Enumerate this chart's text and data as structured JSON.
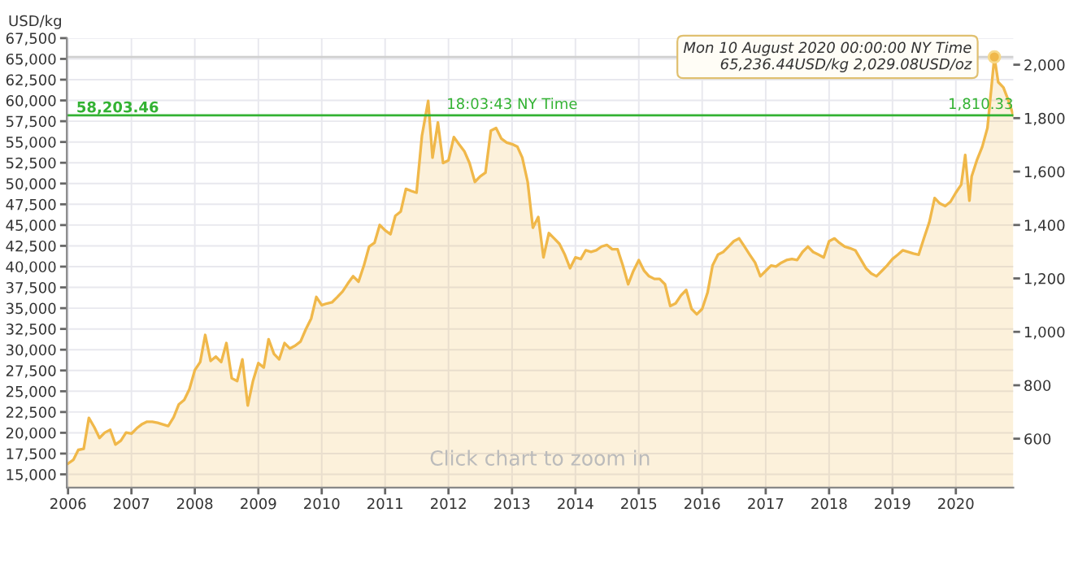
{
  "chart_data": {
    "type": "area",
    "ylabel": "USD/kg",
    "x": [
      "2006-01",
      "2006-02",
      "2006-03",
      "2006-04",
      "2006-05",
      "2006-06",
      "2006-07",
      "2006-08",
      "2006-09",
      "2006-10",
      "2006-11",
      "2006-12",
      "2007-01",
      "2007-02",
      "2007-03",
      "2007-04",
      "2007-05",
      "2007-06",
      "2007-07",
      "2007-08",
      "2007-09",
      "2007-10",
      "2007-11",
      "2007-12",
      "2008-01",
      "2008-02",
      "2008-03",
      "2008-04",
      "2008-05",
      "2008-06",
      "2008-07",
      "2008-08",
      "2008-09",
      "2008-10",
      "2008-11",
      "2008-12",
      "2009-01",
      "2009-02",
      "2009-03",
      "2009-04",
      "2009-05",
      "2009-06",
      "2009-07",
      "2009-08",
      "2009-09",
      "2009-10",
      "2009-11",
      "2009-12",
      "2010-01",
      "2010-02",
      "2010-03",
      "2010-04",
      "2010-05",
      "2010-06",
      "2010-07",
      "2010-08",
      "2010-09",
      "2010-10",
      "2010-11",
      "2010-12",
      "2011-01",
      "2011-02",
      "2011-03",
      "2011-04",
      "2011-05",
      "2011-06",
      "2011-07",
      "2011-08",
      "2011-09-06",
      "2011-10",
      "2011-11",
      "2011-12",
      "2012-01",
      "2012-02",
      "2012-03",
      "2012-04",
      "2012-05",
      "2012-06",
      "2012-07",
      "2012-08",
      "2012-09",
      "2012-10",
      "2012-11",
      "2012-12",
      "2013-01",
      "2013-02",
      "2013-03",
      "2013-04",
      "2013-05",
      "2013-06",
      "2013-07",
      "2013-08",
      "2013-09",
      "2013-10",
      "2013-11",
      "2013-12",
      "2014-01",
      "2014-02",
      "2014-03",
      "2014-04",
      "2014-05",
      "2014-06",
      "2014-07",
      "2014-08",
      "2014-09",
      "2014-10",
      "2014-11",
      "2014-12",
      "2015-01",
      "2015-02",
      "2015-03",
      "2015-04",
      "2015-05",
      "2015-06",
      "2015-07",
      "2015-08",
      "2015-09",
      "2015-10",
      "2015-11",
      "2015-12",
      "2016-01",
      "2016-02",
      "2016-03",
      "2016-04",
      "2016-05",
      "2016-06",
      "2016-07",
      "2016-08",
      "2016-09",
      "2016-10",
      "2016-11",
      "2016-12",
      "2017-01",
      "2017-02",
      "2017-03",
      "2017-04",
      "2017-05",
      "2017-06",
      "2017-07",
      "2017-08",
      "2017-09",
      "2017-10",
      "2017-11",
      "2017-12",
      "2018-01",
      "2018-02",
      "2018-03",
      "2018-04",
      "2018-05",
      "2018-06",
      "2018-07",
      "2018-08",
      "2018-09",
      "2018-10",
      "2018-11",
      "2018-12",
      "2019-01",
      "2019-02",
      "2019-03",
      "2019-04",
      "2019-05",
      "2019-06",
      "2019-07",
      "2019-08",
      "2019-09",
      "2019-10",
      "2019-11",
      "2019-12",
      "2020-01",
      "2020-02",
      "2020-02-24",
      "2020-03-19",
      "2020-04",
      "2020-05",
      "2020-06",
      "2020-07",
      "2020-08-10",
      "2020-09",
      "2020-10",
      "2020-11",
      "2020-11-27"
    ],
    "series": [
      {
        "color": "#f0b84a",
        "values": [
          16300,
          16760,
          17940,
          18070,
          21790,
          20680,
          19380,
          20030,
          20350,
          18590,
          19050,
          20030,
          19900,
          20550,
          21010,
          21330,
          21330,
          21200,
          21010,
          20810,
          21860,
          23420,
          23950,
          25250,
          27540,
          28520,
          31780,
          28650,
          29170,
          28520,
          30800,
          26560,
          26230,
          28840,
          23290,
          26230,
          28390,
          27860,
          31260,
          29500,
          28840,
          30800,
          30150,
          30480,
          30990,
          32440,
          33740,
          36350,
          35370,
          35570,
          35700,
          36350,
          37010,
          37990,
          38840,
          38190,
          40140,
          42410,
          42870,
          45010,
          44360,
          43900,
          46110,
          46630,
          49360,
          49100,
          48900,
          55720,
          59940,
          53120,
          57340,
          52470,
          52800,
          55590,
          54740,
          53900,
          52470,
          50200,
          50850,
          51300,
          56370,
          56690,
          55390,
          54940,
          54740,
          54420,
          53120,
          50200,
          44680,
          45980,
          41110,
          44030,
          43390,
          42740,
          41440,
          39810,
          41110,
          40920,
          41960,
          41770,
          41960,
          42420,
          42610,
          42090,
          42090,
          40140,
          37870,
          39490,
          40790,
          39490,
          38840,
          38520,
          38520,
          37870,
          35260,
          35570,
          36540,
          37190,
          34910,
          34260,
          34910,
          36860,
          40140,
          41440,
          41760,
          42410,
          43060,
          43390,
          42410,
          41440,
          40470,
          38840,
          39490,
          40140,
          40010,
          40470,
          40790,
          40920,
          40790,
          41760,
          42410,
          41760,
          41440,
          41110,
          43060,
          43390,
          42870,
          42410,
          42220,
          41960,
          40920,
          39810,
          39170,
          38840,
          39490,
          40140,
          40920,
          41440,
          41960,
          41770,
          41570,
          41440,
          43390,
          45330,
          48250,
          47600,
          47280,
          47800,
          48900,
          49870,
          53440,
          47930,
          50850,
          52800,
          54420,
          56690,
          65236.44,
          62210,
          61560,
          59870,
          58203.46
        ]
      }
    ],
    "xlim": [
      "2005-12-25",
      "2020-11-27"
    ],
    "ylim": [
      13400,
      67500
    ],
    "y2lim": [
      416.8,
      2099.5
    ],
    "xticks": [
      {
        "value": "2006",
        "label": "2006"
      },
      {
        "value": "2007",
        "label": "2007"
      },
      {
        "value": "2008",
        "label": "2008"
      },
      {
        "value": "2009",
        "label": "2009"
      },
      {
        "value": "2010",
        "label": "2010"
      },
      {
        "value": "2011",
        "label": "2011"
      },
      {
        "value": "2012",
        "label": "2012"
      },
      {
        "value": "2013",
        "label": "2013"
      },
      {
        "value": "2014",
        "label": "2014"
      },
      {
        "value": "2015",
        "label": "2015"
      },
      {
        "value": "2016",
        "label": "2016"
      },
      {
        "value": "2017",
        "label": "2017"
      },
      {
        "value": "2018",
        "label": "2018"
      },
      {
        "value": "2019",
        "label": "2019"
      },
      {
        "value": "2020",
        "label": "2020"
      }
    ],
    "yticks": [
      {
        "value": 15000,
        "label": "15,000"
      },
      {
        "value": 17500,
        "label": "17,500"
      },
      {
        "value": 20000,
        "label": "20,000"
      },
      {
        "value": 22500,
        "label": "22,500"
      },
      {
        "value": 25000,
        "label": "25,000"
      },
      {
        "value": 27500,
        "label": "27,500"
      },
      {
        "value": 30000,
        "label": "30,000"
      },
      {
        "value": 32500,
        "label": "32,500"
      },
      {
        "value": 35000,
        "label": "35,000"
      },
      {
        "value": 37500,
        "label": "37,500"
      },
      {
        "value": 40000,
        "label": "40,000"
      },
      {
        "value": 42500,
        "label": "42,500"
      },
      {
        "value": 45000,
        "label": "45,000"
      },
      {
        "value": 47500,
        "label": "47,500"
      },
      {
        "value": 50000,
        "label": "50,000"
      },
      {
        "value": 52500,
        "label": "52,500"
      },
      {
        "value": 55000,
        "label": "55,000"
      },
      {
        "value": 57500,
        "label": "57,500"
      },
      {
        "value": 60000,
        "label": "60,000"
      },
      {
        "value": 62500,
        "label": "62,500"
      },
      {
        "value": 65000,
        "label": "65,000"
      },
      {
        "value": 67500,
        "label": "67,500"
      }
    ],
    "y2ticks": [
      600,
      800,
      {
        "value": 1000,
        "label": "1,000"
      },
      {
        "value": 1200,
        "label": "1,200"
      },
      {
        "value": 1400,
        "label": "1,400"
      },
      {
        "value": 1600,
        "label": "1,600"
      },
      {
        "value": 1800,
        "label": "1,800"
      },
      {
        "value": 2000,
        "label": "2,000"
      }
    ],
    "ref_lines": [
      {
        "axis": "y",
        "value": 58203.46,
        "label": "58,203.46",
        "color": "#33b233"
      },
      {
        "axis": "y",
        "value": 65236.44,
        "color": "#d0d0d0"
      }
    ],
    "annotations": [
      {
        "text": "18:03:43 NY Time",
        "x": "2013-01",
        "y": 58203.46
      },
      {
        "text": "1,810.33",
        "x": "2020-11-27",
        "y": 58203.46
      },
      {
        "text": "Mon 10 August 2020 00:00:00 NY Time\n65,236.44USD/kg 2,029.08USD/oz",
        "x": "2020-08-10",
        "y": 65236.44
      },
      "Click chart to zoom in"
    ],
    "grid": true
  }
}
